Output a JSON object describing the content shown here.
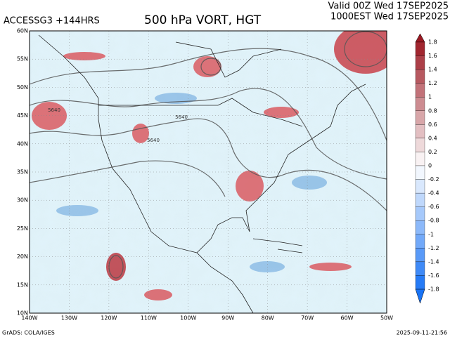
{
  "header": {
    "model": "ACCESSG3 +144HRS",
    "title": "500 hPa VORT, HGT",
    "valid": "Valid 00Z Wed 17SEP2025",
    "local": "1000EST Wed 17SEP2025"
  },
  "map": {
    "lat_labels": [
      "60N",
      "55N",
      "50N",
      "45N",
      "40N",
      "35N",
      "30N",
      "25N",
      "20N",
      "15N",
      "10N"
    ],
    "lon_labels": [
      "140W",
      "130W",
      "120W",
      "110W",
      "100W",
      "90W",
      "80W",
      "70W",
      "60W",
      "50W"
    ],
    "contour_labels": [
      "5640",
      "5640",
      "5640"
    ]
  },
  "colorbar": {
    "labels": [
      "1.8",
      "1.6",
      "1.4",
      "1.2",
      "1",
      "0.8",
      "0.6",
      "0.4",
      "0.2",
      "0",
      "-0.2",
      "-0.4",
      "-0.6",
      "-0.8",
      "-1",
      "-1.2",
      "-1.4",
      "-1.6",
      "-1.8"
    ]
  },
  "footer": {
    "credit": "GrADS: COLA/IGES",
    "timestamp": "2025-09-11-21:56"
  }
}
